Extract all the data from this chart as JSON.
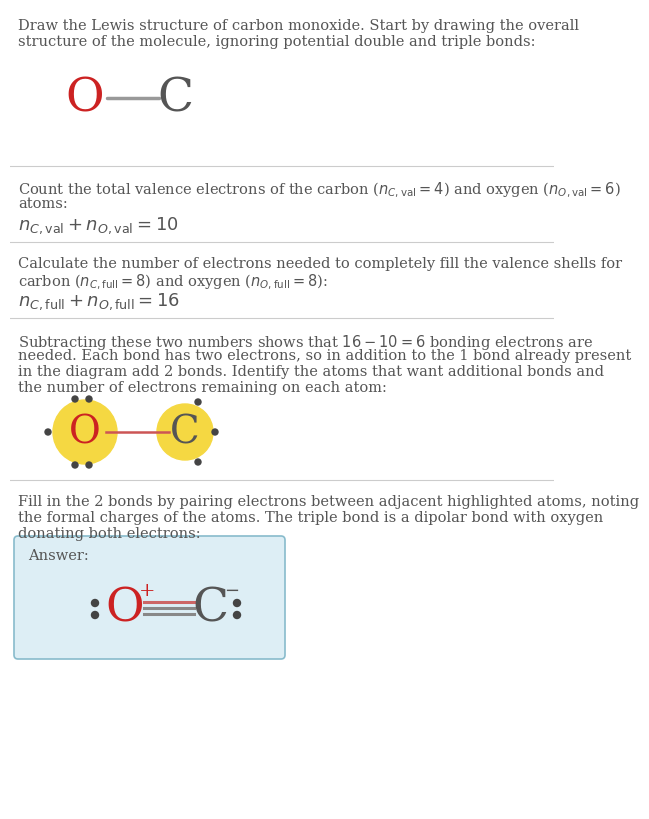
{
  "bg_color": "#ffffff",
  "text_color": "#555555",
  "O_color": "#cc2222",
  "C_color": "#555555",
  "highlight_color": "#f5d842",
  "bond_color": "#999999",
  "bond_color_red": "#cc5555",
  "dot_color": "#444444",
  "answer_border": "#88bbcc",
  "answer_bg": "#ddeef5",
  "s1l1": "Draw the Lewis structure of carbon monoxide. Start by drawing the overall",
  "s1l2": "structure of the molecule, ignoring potential double and triple bonds:",
  "s2l1": "Count the total valence electrons of the carbon ($n_{C,\\mathrm{val}} = 4$) and oxygen ($n_{O,\\mathrm{val}} = 6$)",
  "s2l2": "atoms:",
  "s2f": "$n_{C,\\mathrm{val}} + n_{O,\\mathrm{val}} = 10$",
  "s3l1": "Calculate the number of electrons needed to completely fill the valence shells for",
  "s3l2": "carbon ($n_{C,\\mathrm{full}} = 8$) and oxygen ($n_{O,\\mathrm{full}} = 8$):",
  "s3f": "$n_{C,\\mathrm{full}} + n_{O,\\mathrm{full}} = 16$",
  "s4l1": "Subtracting these two numbers shows that $16 - 10 = 6$ bonding electrons are",
  "s4l2": "needed. Each bond has two electrons, so in addition to the 1 bond already present",
  "s4l3": "in the diagram add 2 bonds. Identify the atoms that want additional bonds and",
  "s4l4": "the number of electrons remaining on each atom:",
  "s5l1": "Fill in the 2 bonds by pairing electrons between adjacent highlighted atoms, noting",
  "s5l2": "the formal charges of the atoms. The triple bond is a dipolar bond with oxygen",
  "s5l3": "donating both electrons:",
  "answer_label": "Answer:"
}
